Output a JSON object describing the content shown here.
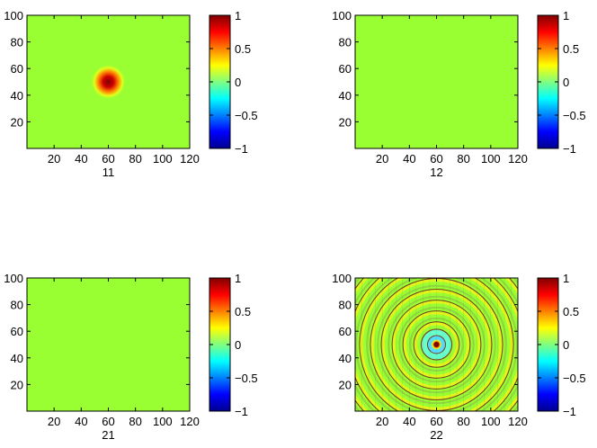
{
  "figure": {
    "colormap": "jet",
    "field_bg": "#99ff33",
    "axis_color": "#000000"
  },
  "chart_data": [
    {
      "type": "heatmap",
      "title": "",
      "xlabel": "11",
      "ylabel": "",
      "xlim": [
        0,
        120
      ],
      "ylim": [
        0,
        100
      ],
      "xticks": [
        20,
        40,
        60,
        80,
        100,
        120
      ],
      "yticks": [
        20,
        40,
        60,
        80,
        100
      ],
      "clim": [
        -1,
        1
      ],
      "colorbar_ticks": [
        -1,
        -0.5,
        0,
        0.5,
        1
      ],
      "colorbar_ticklabels": [
        "−1",
        "−0.5",
        "0",
        "0.5",
        "1"
      ],
      "field": "gaussian peak of value 1 centred at (60, 50), width ~5; value 0 elsewhere",
      "peak": {
        "x": 60,
        "y": 50,
        "value": 1,
        "sigma": 5
      }
    },
    {
      "type": "heatmap",
      "title": "",
      "xlabel": "12",
      "ylabel": "",
      "xlim": [
        0,
        120
      ],
      "ylim": [
        0,
        100
      ],
      "xticks": [
        20,
        40,
        60,
        80,
        100,
        120
      ],
      "yticks": [
        20,
        40,
        60,
        80,
        100
      ],
      "clim": [
        -1,
        1
      ],
      "colorbar_ticks": [
        -1,
        -0.5,
        0,
        0.5,
        1
      ],
      "colorbar_ticklabels": [
        "−1",
        "−0.5",
        "0",
        "0.5",
        "1"
      ],
      "field": "uniform 0"
    },
    {
      "type": "heatmap",
      "title": "",
      "xlabel": "21",
      "ylabel": "",
      "xlim": [
        0,
        120
      ],
      "ylim": [
        0,
        100
      ],
      "xticks": [
        20,
        40,
        60,
        80,
        100,
        120
      ],
      "yticks": [
        20,
        40,
        60,
        80,
        100
      ],
      "clim": [
        -1,
        1
      ],
      "colorbar_ticks": [
        -1,
        -0.5,
        0,
        0.5,
        1
      ],
      "colorbar_ticklabels": [
        "−1",
        "−0.5",
        "0",
        "0.5",
        "1"
      ],
      "field": "uniform 0"
    },
    {
      "type": "heatmap",
      "title": "",
      "xlabel": "22",
      "ylabel": "",
      "xlim": [
        0,
        120
      ],
      "ylim": [
        0,
        100
      ],
      "xticks": [
        20,
        40,
        60,
        80,
        100,
        120
      ],
      "yticks": [
        20,
        40,
        60,
        80,
        100
      ],
      "clim": [
        -1,
        1
      ],
      "colorbar_ticks": [
        -1,
        -0.5,
        0,
        0.5,
        1
      ],
      "colorbar_ticklabels": [
        "−1",
        "−0.5",
        "0",
        "0.5",
        "1"
      ],
      "field": "concentric rings centred at (60, 50); strong peak of value 1 at centre with cyan (−0.4) annulus; weak alternating rings of small amplitude outward",
      "peak": {
        "x": 60,
        "y": 50,
        "value": 1
      },
      "rings": {
        "center": [
          60,
          50
        ],
        "spacing": 8,
        "amplitude": 0.1
      },
      "shading": "faceted"
    }
  ]
}
